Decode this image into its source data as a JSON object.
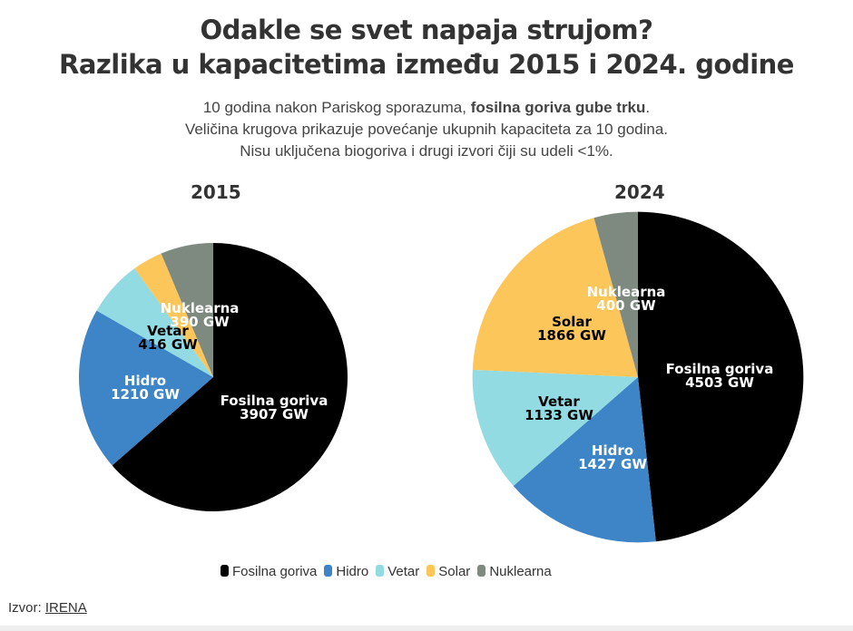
{
  "title_line1": "Odakle se svet napaja strujom?",
  "title_line2": "Razlika u kapacitetima između 2015 i 2024. godine",
  "subtitle": {
    "line1_pre": "10 godina nakon Pariskog sporazuma, ",
    "line1_bold": "fosilna goriva gube trku",
    "line1_post": ".",
    "line2": "Veličina krugova prikazuje povećanje ukupnih kapaciteta za 10 godina.",
    "line3": "Nisu uključena biogoriva i drugi izvori čiji su udeli <1%."
  },
  "source_label": "Izvor:",
  "source_link": "IRENA",
  "unit": "GW",
  "chart_data": [
    {
      "type": "pie",
      "title": "2015",
      "categories": [
        "Fosilna goriva",
        "Hidro",
        "Vetar",
        "Solar",
        "Nuklearna"
      ],
      "values": [
        3907,
        1210,
        416,
        223,
        390
      ],
      "labeled": [
        true,
        true,
        true,
        false,
        true
      ]
    },
    {
      "type": "pie",
      "title": "2024",
      "categories": [
        "Fosilna goriva",
        "Hidro",
        "Vetar",
        "Solar",
        "Nuklearna"
      ],
      "values": [
        4503,
        1427,
        1133,
        1866,
        400
      ],
      "labeled": [
        true,
        true,
        true,
        true,
        true
      ]
    }
  ],
  "legend": [
    {
      "label": "Fosilna goriva",
      "color": "#000000"
    },
    {
      "label": "Hidro",
      "color": "#3d85c6"
    },
    {
      "label": "Vetar",
      "color": "#92dbe3"
    },
    {
      "label": "Solar",
      "color": "#fcc65a"
    },
    {
      "label": "Nuklearna",
      "color": "#7e8a80"
    }
  ],
  "label_text_colors": [
    "#ffffff",
    "#ffffff",
    "#000000",
    "#000000",
    "#ffffff"
  ]
}
